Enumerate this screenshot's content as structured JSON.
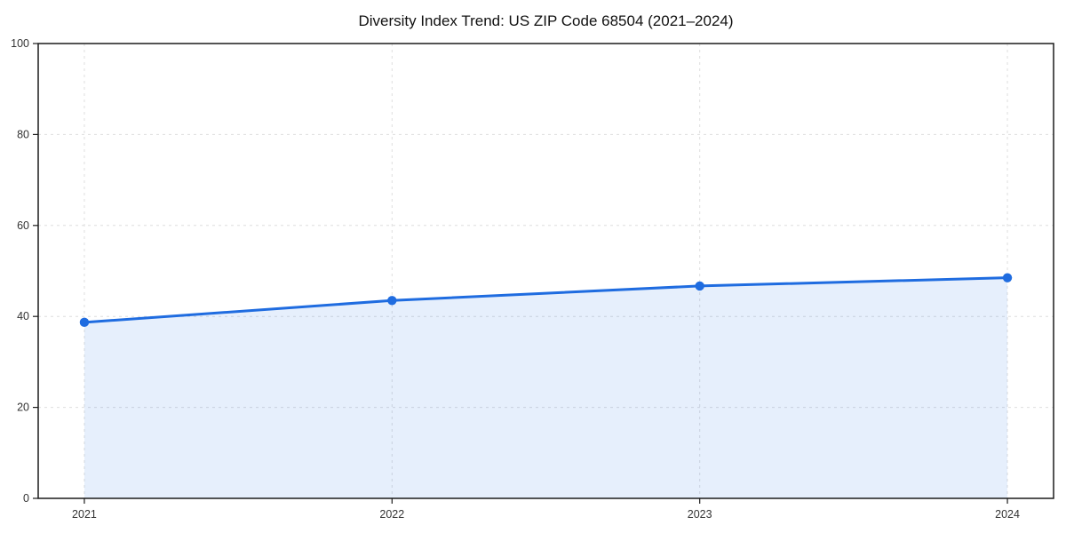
{
  "chart": {
    "title": "Diversity Index Trend: US ZIP Code 68504 (2021–2024)"
  },
  "chart_data": {
    "type": "line",
    "title": "Diversity Index Trend: US ZIP Code 68504 (2021–2024)",
    "x": [
      2021,
      2022,
      2023,
      2024
    ],
    "series": [
      {
        "name": "Diversity Index",
        "values": [
          38.7,
          43.5,
          46.7,
          48.5
        ]
      }
    ],
    "xlabel": "",
    "ylabel": "",
    "xlim": [
      2020.85,
      2024.15
    ],
    "ylim": [
      0,
      100
    ],
    "xticks": [
      2021,
      2022,
      2023,
      2024
    ],
    "yticks": [
      0,
      20,
      40,
      60,
      80,
      100
    ],
    "grid": "dashed light gray, horizontal and vertical",
    "legend": "none",
    "area_fill": true,
    "style": {
      "line_color": "#1f6ce0",
      "marker": "circle",
      "marker_color": "#1f6ce0",
      "fill_color": "#1f6ce0",
      "fill_opacity": 0.11,
      "grid_color": "#dedede",
      "spine_color": "#1c1c1c",
      "tick_label_color": "#333333",
      "background": "#ffffff"
    }
  }
}
